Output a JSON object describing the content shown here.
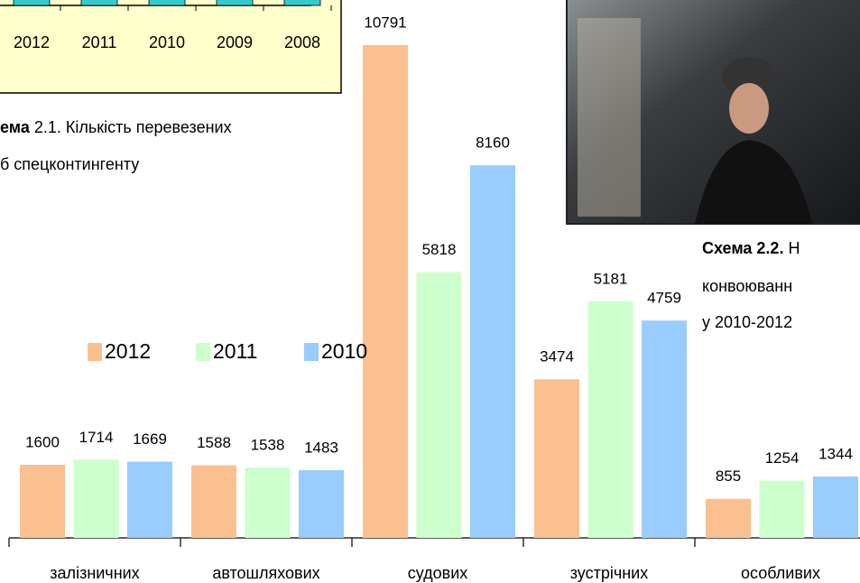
{
  "figure_1": {
    "categories": [
      "2012",
      "2011",
      "2010",
      "2009",
      "2008"
    ],
    "caption": {
      "label": "ема",
      "text": "2.1. Кількість перевезених",
      "line2": "б спецконтингенту"
    }
  },
  "figure_2_caption": {
    "label": "Схема 2.2.",
    "text": "Н",
    "line2": "конвоюванн",
    "line3": "у 2010-2012"
  },
  "chart_data": {
    "type": "bar",
    "categories": [
      "залізничних",
      "автошляхових",
      "судових",
      "зустрічних",
      "особливих"
    ],
    "series": [
      {
        "name": "2012",
        "color": "#fac090",
        "values": [
          1600,
          1588,
          10791,
          3474,
          855
        ]
      },
      {
        "name": "2011",
        "color": "#ccffcc",
        "values": [
          1714,
          1538,
          5818,
          5181,
          1254
        ]
      },
      {
        "name": "2010",
        "color": "#99ccff",
        "values": [
          1669,
          1483,
          8160,
          4759,
          1344
        ]
      }
    ]
  }
}
